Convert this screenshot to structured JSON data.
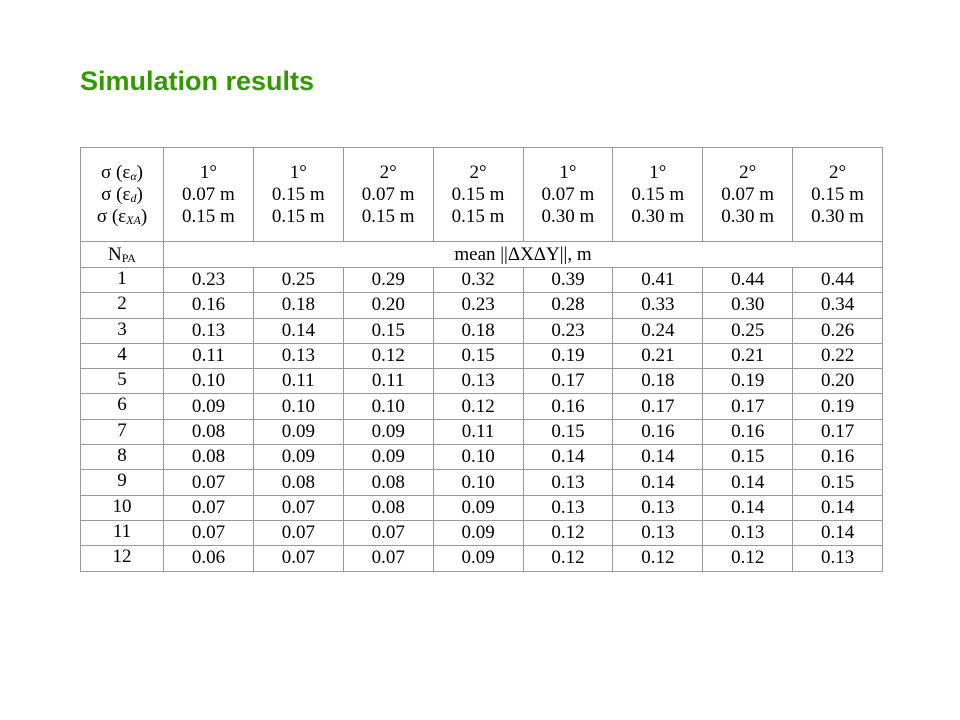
{
  "title": "Simulation results",
  "table": {
    "param_labels": [
      {
        "base": "σ (ε",
        "sub": "α",
        "tail": ")"
      },
      {
        "base": "σ (ε",
        "sub": "d",
        "tail": ")"
      },
      {
        "base": "σ (ε",
        "sub": "XA",
        "tail": ")"
      }
    ],
    "columns": [
      [
        "1°",
        "0.07 m",
        "0.15 m"
      ],
      [
        "1°",
        "0.15 m",
        "0.15 m"
      ],
      [
        "2°",
        "0.07 m",
        "0.15 m"
      ],
      [
        "2°",
        "0.15 m",
        "0.15 m"
      ],
      [
        "1°",
        "0.07 m",
        "0.30 m"
      ],
      [
        "1°",
        "0.15 m",
        "0.30 m"
      ],
      [
        "2°",
        "0.07 m",
        "0.30 m"
      ],
      [
        "2°",
        "0.15 m",
        "0.30 m"
      ]
    ],
    "row_header": {
      "base": "N",
      "sub": "PA"
    },
    "value_header": "mean ||ΔXΔY||, m",
    "rows": [
      [
        "1",
        "0.23",
        "0.25",
        "0.29",
        "0.32",
        "0.39",
        "0.41",
        "0.44",
        "0.44"
      ],
      [
        "2",
        "0.16",
        "0.18",
        "0.20",
        "0.23",
        "0.28",
        "0.33",
        "0.30",
        "0.34"
      ],
      [
        "3",
        "0.13",
        "0.14",
        "0.15",
        "0.18",
        "0.23",
        "0.24",
        "0.25",
        "0.26"
      ],
      [
        "4",
        "0.11",
        "0.13",
        "0.12",
        "0.15",
        "0.19",
        "0.21",
        "0.21",
        "0.22"
      ],
      [
        "5",
        "0.10",
        "0.11",
        "0.11",
        "0.13",
        "0.17",
        "0.18",
        "0.19",
        "0.20"
      ],
      [
        "6",
        "0.09",
        "0.10",
        "0.10",
        "0.12",
        "0.16",
        "0.17",
        "0.17",
        "0.19"
      ],
      [
        "7",
        "0.08",
        "0.09",
        "0.09",
        "0.11",
        "0.15",
        "0.16",
        "0.16",
        "0.17"
      ],
      [
        "8",
        "0.08",
        "0.09",
        "0.09",
        "0.10",
        "0.14",
        "0.14",
        "0.15",
        "0.16"
      ],
      [
        "9",
        "0.07",
        "0.08",
        "0.08",
        "0.10",
        "0.13",
        "0.14",
        "0.14",
        "0.15"
      ],
      [
        "10",
        "0.07",
        "0.07",
        "0.08",
        "0.09",
        "0.13",
        "0.13",
        "0.14",
        "0.14"
      ],
      [
        "11",
        "0.07",
        "0.07",
        "0.07",
        "0.09",
        "0.12",
        "0.13",
        "0.13",
        "0.14"
      ],
      [
        "12",
        "0.06",
        "0.07",
        "0.07",
        "0.09",
        "0.12",
        "0.12",
        "0.12",
        "0.13"
      ]
    ]
  }
}
